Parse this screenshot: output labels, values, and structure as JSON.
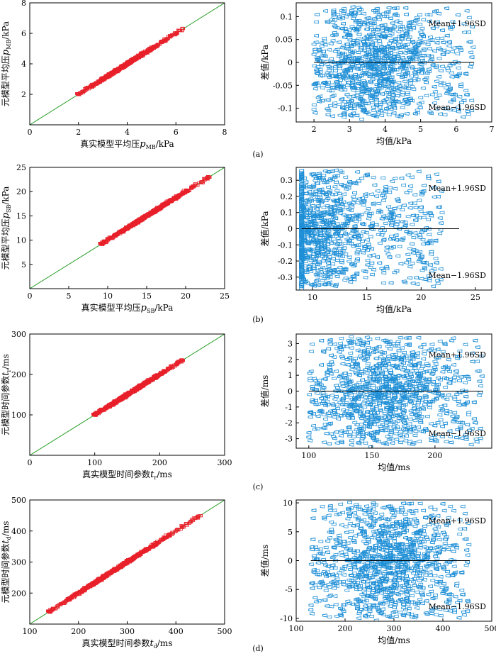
{
  "figure": {
    "panel_labels": [
      "(a)",
      "(b)",
      "(c)",
      "(d)"
    ],
    "colors": {
      "scatter_marker": "#e8202a",
      "identity_line": "#2ca02c",
      "ba_marker": "#1f8fd6",
      "mean_line": "#000000",
      "axes": "#000000"
    }
  },
  "chart_data": [
    {
      "id": "a-left",
      "panel": "(a)",
      "type": "scatter",
      "title": "",
      "xlabel": "真实模型平均压p_MB/kPa",
      "ylabel": "元模型平均压p_MB/kPa",
      "xlim": [
        0,
        8
      ],
      "ylim": [
        0,
        8
      ],
      "xticks": [
        0,
        2,
        4,
        6,
        8
      ],
      "yticks": [
        2,
        4,
        6,
        8
      ],
      "identity_line": true,
      "series": [
        {
          "points_description_range": [
            2.0,
            6.3
          ],
          "marker": "square"
        }
      ]
    },
    {
      "id": "a-right",
      "panel": "(a)",
      "type": "scatter",
      "title": "",
      "xlabel": "均值/kPa",
      "ylabel": "差值/kPa",
      "xlim": [
        1.5,
        7
      ],
      "ylim": [
        -0.13,
        0.13
      ],
      "xticks": [
        2,
        3,
        4,
        5,
        6,
        7
      ],
      "yticks": [
        -0.1,
        -0.05,
        0,
        0.05,
        0.1
      ],
      "mean_line": 0,
      "mean_line_x": [
        2,
        6.5
      ],
      "annotations": [
        "Mean+1.96SD",
        "Mean−1.96SD"
      ],
      "x_distribution": {
        "low": 2.0,
        "high": 6.5,
        "peak": 3.7
      },
      "y_spread": 0.12
    },
    {
      "id": "b-left",
      "panel": "(b)",
      "type": "scatter",
      "title": "",
      "xlabel": "真实模型平均压p_SB/kPa",
      "ylabel": "元模型平均压p_SB/kPa",
      "xlim": [
        0,
        25
      ],
      "ylim": [
        0,
        25
      ],
      "xticks": [
        0,
        5,
        10,
        15,
        20,
        25
      ],
      "yticks": [
        5,
        10,
        15,
        20,
        25
      ],
      "identity_line": true,
      "series": [
        {
          "points_description_range": [
            9.2,
            23.0
          ],
          "marker": "square"
        }
      ]
    },
    {
      "id": "b-right",
      "panel": "(b)",
      "type": "scatter",
      "title": "",
      "xlabel": "均值/kPa",
      "ylabel": "差值/kPa",
      "xlim": [
        8.5,
        26.5
      ],
      "ylim": [
        -0.38,
        0.38
      ],
      "xticks": [
        10,
        15,
        20,
        25
      ],
      "yticks": [
        -0.3,
        -0.2,
        -0.1,
        0,
        0.1,
        0.2,
        0.3
      ],
      "mean_line": 0,
      "mean_line_x": [
        9,
        23.5
      ],
      "annotations": [
        "Mean+1.96SD",
        "Mean−1.96SD"
      ],
      "x_distribution": {
        "low": 9.0,
        "high": 22.0,
        "peak": 10.0
      },
      "y_spread": 0.36
    },
    {
      "id": "c-left",
      "panel": "(c)",
      "type": "scatter",
      "title": "",
      "xlabel": "真实模型时间参数t_r/ms",
      "ylabel": "元模型时间参数t_r/ms",
      "xlim": [
        0,
        300
      ],
      "ylim": [
        0,
        300
      ],
      "xticks": [
        0,
        100,
        200,
        300
      ],
      "yticks": [
        100,
        200,
        300
      ],
      "identity_line": true,
      "series": [
        {
          "points_description_range": [
            100,
            235
          ],
          "marker": "square"
        }
      ]
    },
    {
      "id": "c-right",
      "panel": "(c)",
      "type": "scatter",
      "title": "",
      "xlabel": "均值/ms",
      "ylabel": "差值/ms",
      "xlim": [
        90,
        245
      ],
      "ylim": [
        -3.6,
        3.6
      ],
      "xticks": [
        100,
        150,
        200
      ],
      "yticks": [
        -3,
        -2,
        -1,
        0,
        1,
        2,
        3
      ],
      "mean_line": 0,
      "mean_line_x": [
        100,
        238
      ],
      "annotations": [
        "Mean+1.96SD",
        "Mean−1.96SD"
      ],
      "x_distribution": {
        "low": 100,
        "high": 238,
        "peak": 160
      },
      "y_spread": 3.4
    },
    {
      "id": "d-left",
      "panel": "(d)",
      "type": "scatter",
      "title": "",
      "xlabel": "真实模型时间参数t_d/ms",
      "ylabel": "元模型时间参数t_d/ms",
      "xlim": [
        100,
        500
      ],
      "ylim": [
        100,
        500
      ],
      "xticks": [
        100,
        200,
        300,
        400,
        500
      ],
      "yticks": [
        200,
        300,
        400,
        500
      ],
      "identity_line": true,
      "series": [
        {
          "points_description_range": [
            140,
            450
          ],
          "marker": "square"
        }
      ]
    },
    {
      "id": "d-right",
      "panel": "(d)",
      "type": "scatter",
      "title": "",
      "xlabel": "均值/ms",
      "ylabel": "差值/ms",
      "xlim": [
        100,
        500
      ],
      "ylim": [
        -10.5,
        10.5
      ],
      "xticks": [
        100,
        200,
        300,
        400,
        500
      ],
      "yticks": [
        -10,
        -5,
        0,
        5,
        10
      ],
      "mean_line": 0,
      "mean_line_x": [
        130,
        455
      ],
      "annotations": [
        "Mean+1.96SD",
        "Mean−1.96SD"
      ],
      "x_distribution": {
        "low": 130,
        "high": 455,
        "peak": 290
      },
      "y_spread": 10
    }
  ]
}
